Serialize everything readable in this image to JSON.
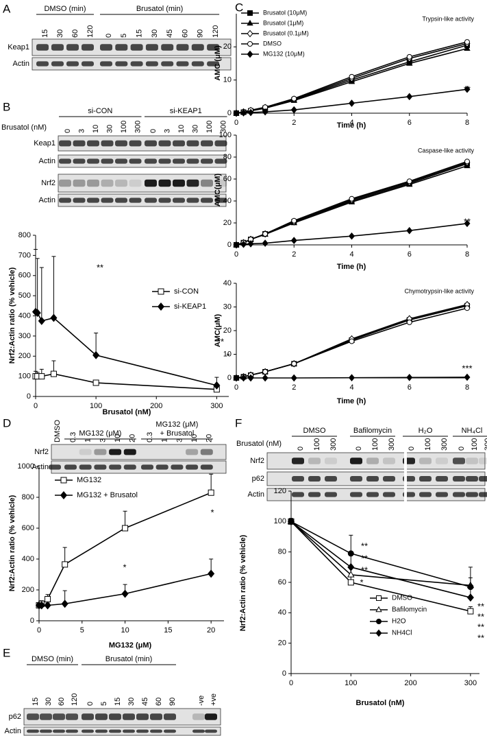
{
  "panel_labels": [
    "A",
    "B",
    "C",
    "D",
    "E",
    "F"
  ],
  "blots": {
    "A": {
      "groups": [
        {
          "name": [
            "DMSO (min)"
          ],
          "lanes": [
            "15",
            "30",
            "60",
            "120"
          ]
        },
        {
          "name": [
            "Brusatol (min)"
          ],
          "lanes": [
            "0",
            "5",
            "15",
            "30",
            "45",
            "60",
            "90",
            "120"
          ]
        }
      ],
      "rows": [
        "Keap1",
        "Actin"
      ]
    },
    "B": {
      "lane_title": "Brusatol (nM)",
      "groups": [
        {
          "name": [
            "si-CON"
          ],
          "lanes": [
            "0",
            "3",
            "10",
            "30",
            "100",
            "300"
          ]
        },
        {
          "name": [
            "si-KEAP1"
          ],
          "lanes": [
            "0",
            "3",
            "10",
            "30",
            "100",
            "300"
          ]
        }
      ],
      "rows": [
        "Keap1",
        "Actin",
        "Nrf2",
        "Actin"
      ]
    },
    "D": {
      "groups": [
        {
          "lanes": [
            "DMSO"
          ]
        },
        {
          "name": [
            "MG132 (μM)"
          ],
          "lanes": [
            "0.3",
            "1",
            "3",
            "10",
            "20"
          ]
        },
        {
          "name": [
            "MG132 (μM)",
            "+ Brusatol"
          ],
          "lanes": [
            "0.3",
            "1",
            "3",
            "10",
            "20"
          ]
        }
      ],
      "rows": [
        "Nrf2",
        "Actin"
      ]
    },
    "E": {
      "groups": [
        {
          "name": [
            "DMSO (min)"
          ],
          "lanes": [
            "15",
            "30",
            "60",
            "120"
          ]
        },
        {
          "name": [
            "Brusatol (min)"
          ],
          "lanes": [
            "0",
            "5",
            "15",
            "30",
            "45",
            "60",
            "90"
          ]
        },
        {
          "lanes": [
            "-ve",
            "+ve"
          ]
        }
      ],
      "rows": [
        "p62",
        "Actin"
      ]
    },
    "F": {
      "lane_title": "Brusatol (nM)",
      "groups": [
        {
          "name": [
            "DMSO"
          ],
          "lanes": [
            "0",
            "100",
            "300"
          ]
        },
        {
          "name": [
            "Bafilomycin"
          ],
          "lanes": [
            "0",
            "100",
            "300"
          ]
        },
        {
          "name": [
            "H₂O"
          ],
          "lanes": [
            "0",
            "100",
            "300"
          ]
        },
        {
          "name": [
            "NH₄Cl"
          ],
          "lanes": [
            "0",
            "100",
            "300"
          ]
        }
      ],
      "rows": [
        "Nrf2",
        "p62",
        "Actin"
      ]
    }
  },
  "chart_data": [
    {
      "type": "line",
      "x_label": "Brusatol (nM)",
      "y_label": "Nrf2:Actin ratio (% vehicle)",
      "x": [
        0,
        3,
        10,
        30,
        100,
        300
      ],
      "series": [
        {
          "name": "si-CON",
          "color": "#000000",
          "marker": "square",
          "filled": false,
          "values": [
            100,
            100,
            100,
            112,
            68,
            35
          ],
          "errors": [
            25,
            20,
            35,
            65,
            10,
            8
          ]
        },
        {
          "name": "si-KEAP1",
          "color": "#000000",
          "marker": "diamond",
          "filled": true,
          "values": [
            420,
            415,
            375,
            390,
            205,
            55
          ],
          "errors": [
            310,
            270,
            265,
            305,
            110,
            40
          ]
        }
      ],
      "xlim": [
        0,
        320
      ],
      "ylim": [
        0,
        800
      ],
      "xticks": [
        0,
        100,
        200,
        300
      ],
      "yticks": [
        0,
        100,
        200,
        300,
        400,
        500,
        600,
        700,
        800
      ],
      "annotations": [
        "**",
        "**",
        "*"
      ]
    },
    {
      "type": "line",
      "title": "Trypsin-like activity",
      "x_label": "Time (h)",
      "y_label": "AMC (μM)",
      "x": [
        0,
        0.25,
        0.5,
        1,
        2,
        4,
        6,
        8
      ],
      "series": [
        {
          "name": "Brusatol (10μM)",
          "color": "#000000",
          "marker": "square",
          "filled": true,
          "values": [
            0,
            0.3,
            0.7,
            1.5,
            4,
            10,
            15.5,
            20.5
          ]
        },
        {
          "name": "Brusatol (1μM)",
          "color": "#000000",
          "marker": "triangle",
          "filled": true,
          "values": [
            0,
            0.3,
            0.7,
            1.5,
            3.8,
            9.5,
            15,
            19.5
          ]
        },
        {
          "name": "Brusatol (0.1μM)",
          "color": "#000000",
          "marker": "diamond",
          "filled": false,
          "values": [
            0,
            0.4,
            0.8,
            1.7,
            4.2,
            10.5,
            16.5,
            21
          ]
        },
        {
          "name": "DMSO",
          "color": "#000000",
          "marker": "circle",
          "filled": false,
          "values": [
            0,
            0.4,
            0.9,
            1.8,
            4.4,
            11,
            17,
            21.5
          ]
        },
        {
          "name": "MG132 (10μM)",
          "color": "#000000",
          "marker": "diamond",
          "filled": true,
          "values": [
            0,
            0.1,
            0.2,
            0.4,
            1,
            3,
            5,
            7.2
          ]
        }
      ],
      "xlim": [
        0,
        8
      ],
      "ylim": [
        0,
        30
      ],
      "xticks": [
        0,
        2,
        4,
        6,
        8
      ],
      "yticks": [
        0,
        10,
        20
      ],
      "annotations": [
        "**"
      ]
    },
    {
      "type": "line",
      "title": "Caspase-like activity",
      "x_label": "Time (h)",
      "y_label": "AMC(μM)",
      "x": [
        0,
        0.25,
        0.5,
        1,
        2,
        4,
        6,
        8
      ],
      "series": [
        {
          "name": "Brusatol (10μM)",
          "color": "#000000",
          "marker": "square",
          "filled": true,
          "values": [
            0,
            2,
            5,
            10,
            21,
            40,
            56,
            74
          ]
        },
        {
          "name": "Brusatol (1μM)",
          "color": "#000000",
          "marker": "triangle",
          "filled": true,
          "values": [
            0,
            2,
            5,
            9.5,
            20,
            39,
            55,
            72
          ]
        },
        {
          "name": "Brusatol (0.1μM)",
          "color": "#000000",
          "marker": "diamond",
          "filled": false,
          "values": [
            0,
            2,
            5,
            10,
            21,
            41,
            57,
            75
          ]
        },
        {
          "name": "DMSO",
          "color": "#000000",
          "marker": "circle",
          "filled": false,
          "values": [
            0,
            2,
            5,
            10,
            22,
            42,
            58,
            76
          ]
        },
        {
          "name": "MG132 (10μM)",
          "color": "#000000",
          "marker": "diamond",
          "filled": true,
          "values": [
            0,
            0.5,
            1,
            1.5,
            4,
            8,
            13,
            19.5
          ]
        }
      ],
      "xlim": [
        0,
        8
      ],
      "ylim": [
        0,
        100
      ],
      "xticks": [
        0,
        2,
        4,
        6,
        8
      ],
      "yticks": [
        0,
        20,
        40,
        60,
        80,
        100
      ],
      "annotations": [
        "**"
      ]
    },
    {
      "type": "line",
      "title": "Chymotrypsin-like activity",
      "x_label": "Time (h)",
      "y_label": "AMC(μM)",
      "x": [
        0,
        0.25,
        0.5,
        1,
        2,
        4,
        6,
        8
      ],
      "series": [
        {
          "name": "Brusatol (10μM)",
          "color": "#000000",
          "marker": "square",
          "filled": true,
          "values": [
            0,
            0.5,
            1.2,
            2.6,
            6,
            16,
            24.5,
            30.5
          ]
        },
        {
          "name": "Brusatol (1μM)",
          "color": "#000000",
          "marker": "triangle",
          "filled": true,
          "values": [
            0,
            0.5,
            1.2,
            2.6,
            6,
            16,
            24.5,
            30.5
          ]
        },
        {
          "name": "Brusatol (0.1μM)",
          "color": "#000000",
          "marker": "diamond",
          "filled": false,
          "values": [
            0,
            0.5,
            1.2,
            2.6,
            6,
            16.5,
            25,
            31
          ]
        },
        {
          "name": "DMSO",
          "color": "#000000",
          "marker": "circle",
          "filled": false,
          "values": [
            0,
            0.5,
            1.2,
            2.6,
            6,
            15.5,
            23.5,
            29.5
          ]
        },
        {
          "name": "MG132 (10μM)",
          "color": "#000000",
          "marker": "diamond",
          "filled": true,
          "values": [
            0,
            0,
            0,
            0,
            0,
            0.1,
            0.2,
            0.3
          ]
        }
      ],
      "xlim": [
        0,
        8
      ],
      "ylim": [
        0,
        40
      ],
      "xticks": [
        0,
        2,
        4,
        6,
        8
      ],
      "yticks": [
        0,
        10,
        20,
        30,
        40
      ],
      "annotations": [
        "***"
      ]
    },
    {
      "type": "line",
      "x_label": "MG132 (μM)",
      "y_label": "Nrf2:Actin ratio (% vehicle)",
      "x": [
        0,
        0.3,
        1,
        3,
        10,
        20
      ],
      "series": [
        {
          "name": "MG132",
          "color": "#000000",
          "marker": "square",
          "filled": false,
          "values": [
            100,
            110,
            140,
            365,
            600,
            830
          ],
          "errors": [
            15,
            20,
            30,
            110,
            110,
            120
          ]
        },
        {
          "name": "MG132 + Brusatol",
          "color": "#000000",
          "marker": "diamond",
          "filled": true,
          "values": [
            100,
            100,
            100,
            110,
            175,
            305
          ],
          "errors": [
            15,
            15,
            15,
            85,
            60,
            95
          ]
        }
      ],
      "xlim": [
        0,
        21.5
      ],
      "ylim": [
        0,
        1000
      ],
      "xticks": [
        0,
        5,
        10,
        15,
        20
      ],
      "yticks": [
        0,
        200,
        400,
        600,
        800,
        1000
      ],
      "annotations": [
        "*",
        "*"
      ]
    },
    {
      "type": "line",
      "x_label": "Brusatol (nM)",
      "y_label": "Nrf2:Actin ratio (% vehicle)",
      "x": [
        0,
        100,
        300
      ],
      "series": [
        {
          "name": "DMSO",
          "color": "#000000",
          "marker": "square",
          "filled": false,
          "values": [
            100,
            60,
            41
          ],
          "errors": [
            2,
            4,
            3
          ]
        },
        {
          "name": "Bafilomycin",
          "color": "#000000",
          "marker": "triangle",
          "filled": false,
          "values": [
            100,
            65,
            58
          ],
          "errors": [
            2,
            6,
            5
          ]
        },
        {
          "name": "H2O",
          "color": "#000000",
          "marker": "circle",
          "filled": true,
          "values": [
            100,
            79,
            57
          ],
          "errors": [
            2,
            12,
            13
          ]
        },
        {
          "name": "NH4Cl",
          "color": "#000000",
          "marker": "diamond",
          "filled": true,
          "values": [
            100,
            70,
            50
          ],
          "errors": [
            2,
            8,
            8
          ]
        }
      ],
      "xlim": [
        0,
        315
      ],
      "ylim": [
        0,
        120
      ],
      "xticks": [
        0,
        100,
        200,
        300
      ],
      "yticks": [
        0,
        20,
        40,
        60,
        80,
        100,
        120
      ],
      "annotations": [
        "**",
        "**",
        "**",
        "*",
        "**",
        "**",
        "**",
        "**"
      ]
    }
  ]
}
